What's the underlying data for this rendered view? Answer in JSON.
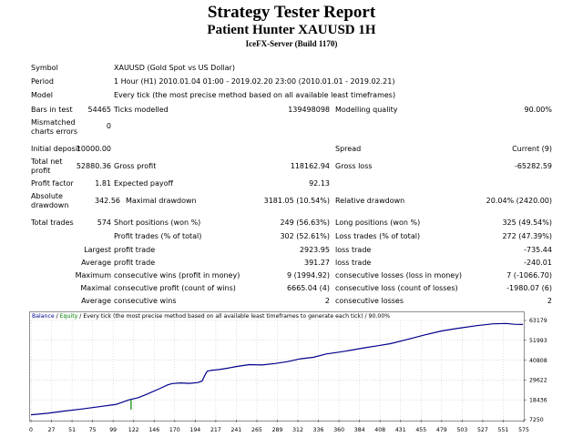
{
  "header": {
    "title": "Strategy Tester Report",
    "subtitle": "Patient Hunter XAUUSD 1H",
    "server": "IceFX-Server (Build 1170)"
  },
  "info": {
    "symbol_label": "Symbol",
    "symbol_value": "XAUUSD (Gold Spot vs US Dollar)",
    "period_label": "Period",
    "period_value": "1 Hour (H1) 2010.01.04 01:00 - 2019.02.20 23:00 (2010.01.01 - 2019.02.21)",
    "model_label": "Model",
    "model_value": "Every tick (the most precise method based on all available least timeframes)",
    "bars_label": "Bars in test",
    "bars_value": "54465",
    "ticks_label": "Ticks modelled",
    "ticks_value": "139498098",
    "quality_label": "Modelling quality",
    "quality_value": "90.00%",
    "mismatch_label_1": "Mismatched",
    "mismatch_label_2": "charts errors",
    "mismatch_value": "0"
  },
  "results": {
    "deposit_label": "Initial deposit",
    "deposit_value": "10000.00",
    "spread_label": "Spread",
    "spread_value": "Current (9)",
    "netprofit_label_1": "Total net",
    "netprofit_label_2": "profit",
    "netprofit_value": "52880.36",
    "grossprofit_label": "Gross profit",
    "grossprofit_value": "118162.94",
    "grossloss_label": "Gross loss",
    "grossloss_value": "-65282.59",
    "pf_label": "Profit factor",
    "pf_value": "1.81",
    "payoff_label": "Expected payoff",
    "payoff_value": "92.13",
    "absdd_label_1": "Absolute",
    "absdd_label_2": "drawdown",
    "absdd_value": "342.56",
    "maxdd_label": "Maximal drawdown",
    "maxdd_value": "3181.05 (10.54%)",
    "reldd_label": "Relative drawdown",
    "reldd_value": "20.04% (2420.00)"
  },
  "trades": {
    "total_label": "Total trades",
    "total_value": "574",
    "short_label": "Short positions (won %)",
    "short_value": "249 (56.63%)",
    "long_label": "Long positions (won %)",
    "long_value": "325 (49.54%)",
    "pt_label": "Profit trades (% of total)",
    "pt_value": "302 (52.61%)",
    "lt_label": "Loss trades (% of total)",
    "lt_value": "272 (47.39%)",
    "largest_label": "Largest",
    "lp_label": "profit trade",
    "lp_value": "2923.95",
    "ll_label": "loss trade",
    "ll_value": "-735.44",
    "average_label": "Average",
    "ap_label": "profit trade",
    "ap_value": "391.27",
    "al_label": "loss trade",
    "al_value": "-240.01",
    "maximum_label": "Maximum",
    "mcw_label": "consecutive wins (profit in money)",
    "mcw_value": "9 (1994.92)",
    "mcl_label": "consecutive losses (loss in money)",
    "mcl_value": "7 (-1066.70)",
    "maximal_label": "Maximal",
    "mcp_label": "consecutive profit (count of wins)",
    "mcp_value": "6665.04 (4)",
    "mcll_label": "consecutive loss (count of losses)",
    "mcll_value": "-1980.07 (6)",
    "average2_label": "Average",
    "acw_label": "consecutive wins",
    "acw_value": "2",
    "acl_label": "consecutive losses",
    "acl_value": "2"
  },
  "chart_legend": {
    "balance": "Balance",
    "sep1": " / ",
    "equity": "Equity",
    "rest": " / Every tick (the most precise method based on all available least timeframes to generate each tick) / 90.00%"
  },
  "chart_data": {
    "type": "line",
    "title": "",
    "xlabel": "",
    "ylabel": "",
    "x_ticks": [
      "0",
      "27",
      "51",
      "75",
      "99",
      "122",
      "146",
      "170",
      "194",
      "217",
      "241",
      "265",
      "289",
      "312",
      "336",
      "360",
      "384",
      "408",
      "431",
      "455",
      "479",
      "503",
      "527",
      "551",
      "575"
    ],
    "y_ticks": [
      "63179",
      "51993",
      "40808",
      "29622",
      "18436",
      "7250"
    ],
    "xlim": [
      0,
      576
    ],
    "ylim": [
      7250,
      63179
    ],
    "grid": true,
    "colors": {
      "balance": "#00008b",
      "equity": "#008000"
    },
    "series": [
      {
        "name": "Balance",
        "x": [
          0,
          20,
          40,
          60,
          80,
          100,
          115,
          125,
          135,
          150,
          160,
          165,
          175,
          185,
          195,
          200,
          204,
          206,
          210,
          220,
          230,
          240,
          255,
          270,
          285,
          300,
          315,
          330,
          345,
          360,
          375,
          390,
          405,
          420,
          440,
          460,
          480,
          500,
          520,
          540,
          555,
          565,
          575
        ],
        "y": [
          10000,
          10900,
          12200,
          13300,
          14600,
          15900,
          18500,
          19600,
          21500,
          24700,
          26900,
          27600,
          28000,
          27700,
          28200,
          29000,
          33000,
          34600,
          35000,
          35500,
          36300,
          37200,
          38300,
          38100,
          38900,
          40000,
          41600,
          42400,
          44300,
          45300,
          46500,
          47800,
          48900,
          50100,
          52500,
          55000,
          57300,
          58800,
          60200,
          61300,
          61500,
          61000,
          60900
        ]
      },
      {
        "name": "Equity",
        "x": [
          117
        ],
        "y": [
          13000
        ]
      }
    ]
  }
}
